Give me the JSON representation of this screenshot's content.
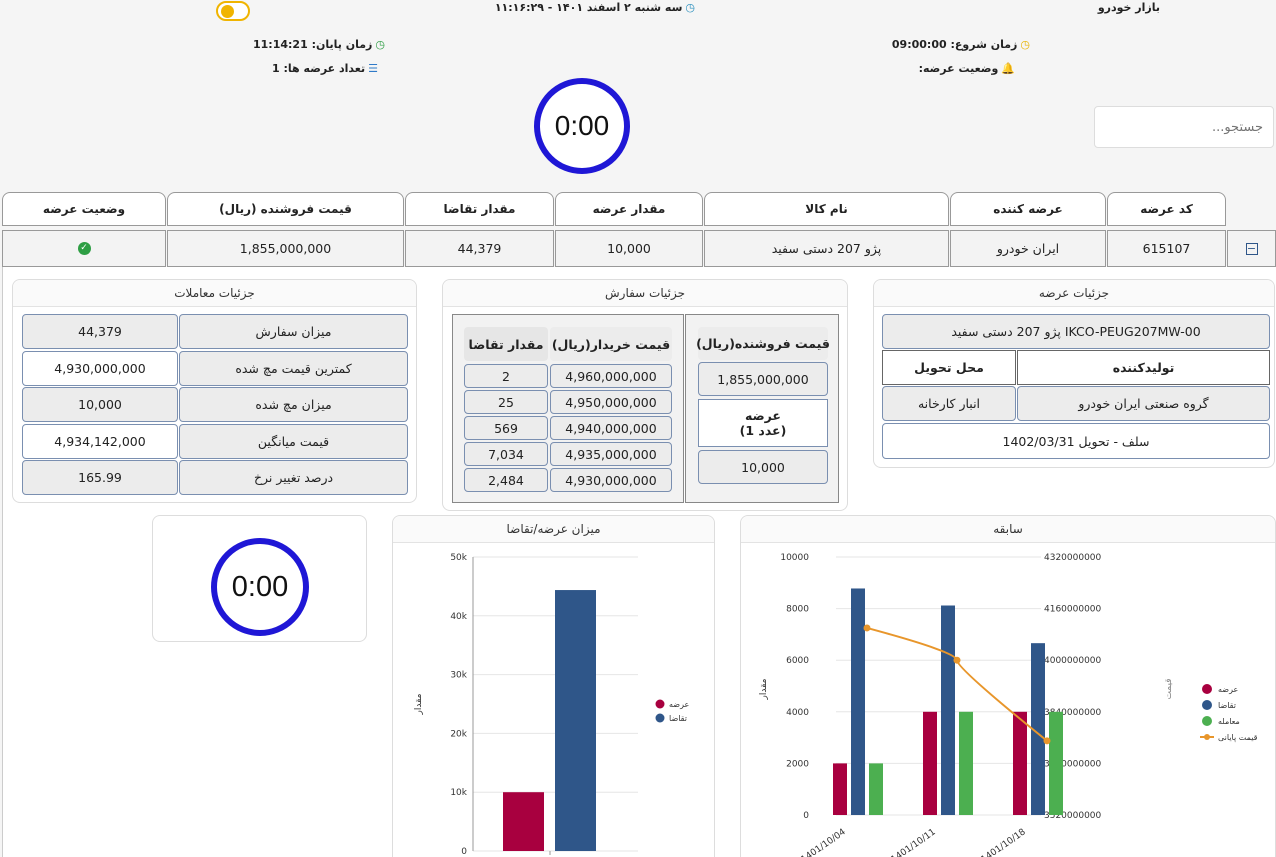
{
  "header": {
    "market": "بازار خودرو",
    "datetime": "سه شنبه ۲ اسفند ۱۴۰۱ - ۱۱:۱۶:۲۹",
    "start_label": "زمان شروع:",
    "start_value": "09:00:00",
    "end_label": "زمان پایان:",
    "end_value": "11:14:21",
    "status_label": "وضعیت عرضه:",
    "count_label": "تعداد عرضه ها:",
    "count_value": "1",
    "timer": "0:00",
    "search_placeholder": "جستجو..."
  },
  "table": {
    "headers": [
      "کد عرضه",
      "عرضه کننده",
      "نام کالا",
      "مقدار عرضه",
      "مقدار تقاضا",
      "قیمت فروشنده (ریال)",
      "وضعیت عرضه"
    ],
    "row": [
      "615107",
      "ایران خودرو",
      "پژو 207 دستی سفید",
      "10,000",
      "44,379",
      "1,855,000,000"
    ]
  },
  "offer_details": {
    "title": "جزئیات عرضه",
    "product": "پژو 207 دستی سفید IKCO-PEUG207MW-00",
    "producer_label": "تولیدکننده",
    "delivery_label": "محل تحویل",
    "producer": "گروه صنعتی ایران خودرو",
    "delivery": "انبار کارخانه",
    "note": "سلف - تحویل 1402/03/31"
  },
  "order_details": {
    "title": "جزئیات سفارش",
    "seller_price_label": "قیمت فروشنده(ریال)",
    "seller_price": "1,855,000,000",
    "offer_label": "عرضه",
    "offer_unit": "(1 عدد)",
    "offer_value": "10,000",
    "buyer_price_label": "قیمت خریدار(ریال)",
    "demand_label": "مقدار تقاضا",
    "rows": [
      {
        "price": "4,960,000,000",
        "qty": "2"
      },
      {
        "price": "4,950,000,000",
        "qty": "25"
      },
      {
        "price": "4,940,000,000",
        "qty": "569"
      },
      {
        "price": "4,935,000,000",
        "qty": "7,034"
      },
      {
        "price": "4,930,000,000",
        "qty": "2,484"
      }
    ]
  },
  "trade_details": {
    "title": "جزئیات معاملات",
    "rows": [
      {
        "label": "میزان سفارش",
        "value": "44,379"
      },
      {
        "label": "کمترین قیمت مچ شده",
        "value": "4,930,000,000"
      },
      {
        "label": "میزان مچ شده",
        "value": "10,000"
      },
      {
        "label": "قیمت میانگین",
        "value": "4,934,142,000"
      },
      {
        "label": "درصد تغییر نرخ",
        "value": "165.99"
      }
    ]
  },
  "colors": {
    "supply": "#a8003f",
    "demand": "#2f5689",
    "trade": "#4caf50",
    "price_line": "#e8962b",
    "timer_ring": "#1f17d6",
    "status_ok": "#2e9e44"
  },
  "chart_data": [
    {
      "type": "bar",
      "title": "میزان عرضه/تقاضا",
      "ylabel": "مقدار",
      "ylim": [
        0,
        50000
      ],
      "yticks": [
        "0",
        "10k",
        "20k",
        "30k",
        "40k",
        "50k"
      ],
      "series": [
        {
          "name": "عرضه",
          "values": [
            10000
          ]
        },
        {
          "name": "تقاضا",
          "values": [
            44379
          ]
        }
      ],
      "legend": "right"
    },
    {
      "type": "bar",
      "title": "سابقه",
      "ylabel": "مقدار",
      "y2label": "قیمت",
      "categories": [
        "1401/10/04",
        "1401/10/11",
        "1401/10/18"
      ],
      "ylim": [
        0,
        10000
      ],
      "yticks": [
        "0",
        "2000",
        "4000",
        "6000",
        "8000",
        "10000"
      ],
      "y2lim": [
        3520000000,
        4320000000
      ],
      "y2ticks": [
        "3520000000",
        "3680000000",
        "3840000000",
        "4000000000",
        "4160000000",
        "4320000000"
      ],
      "series": [
        {
          "name": "عرضه",
          "values": [
            2000,
            4000,
            4000
          ]
        },
        {
          "name": "تقاضا",
          "values": [
            8780,
            8120,
            6660
          ]
        },
        {
          "name": "معامله",
          "values": [
            2000,
            4000,
            4000
          ]
        },
        {
          "name": "قیمت پایانی",
          "type": "line",
          "axis": "y2",
          "values": [
            4100000000,
            4000000000,
            3750000000
          ]
        }
      ],
      "legend": "right"
    }
  ]
}
